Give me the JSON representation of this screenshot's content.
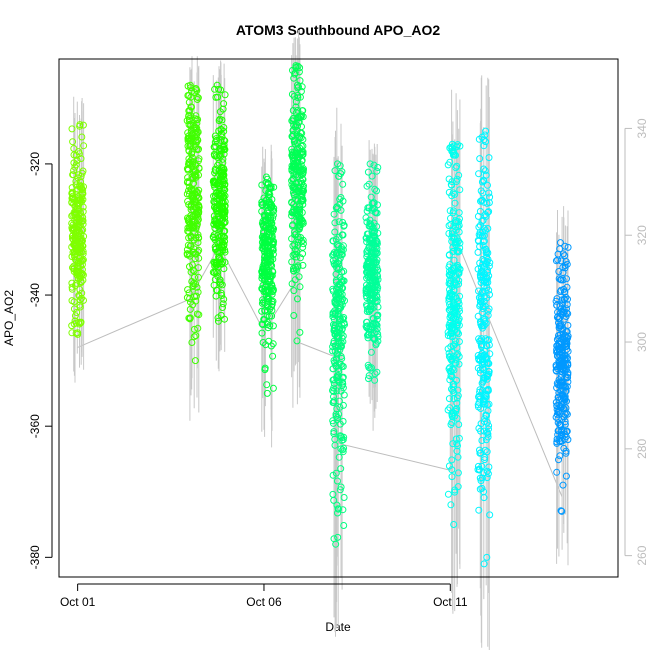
{
  "chart_data": {
    "type": "scatter",
    "title": "ATOM3 Southbound APO_AO2",
    "xlabel": "Date",
    "ylabel": "APO_AO2",
    "x_ticks": [
      "Oct 01",
      "Oct 06",
      "Oct 11"
    ],
    "x_tick_values": [
      1,
      6,
      11
    ],
    "xlim": [
      0.5,
      15.5
    ],
    "ylim": [
      -383,
      -304
    ],
    "y_ticks": [
      -380,
      -360,
      -340,
      -320
    ],
    "y2lim": [
      256,
      353
    ],
    "y2_ticks": [
      260,
      280,
      300,
      320,
      340
    ],
    "y2_color": "#bdbdbd",
    "grid": false,
    "legend": "none",
    "clusters": [
      {
        "x": 1.0,
        "y_min": -346,
        "y_max": -314,
        "y_center": -331,
        "color": "#7fff00"
      },
      {
        "x": 4.1,
        "y_min": -350,
        "y_max": -308,
        "y_center": -325,
        "color": "#40ff00"
      },
      {
        "x": 4.8,
        "y_min": -344,
        "y_max": -308,
        "y_center": -327,
        "color": "#20ff00"
      },
      {
        "x": 6.1,
        "y_min": -355,
        "y_max": -322,
        "y_center": -335,
        "color": "#00ff40"
      },
      {
        "x": 6.9,
        "y_min": -347,
        "y_max": -305,
        "y_center": -322,
        "color": "#00ff55"
      },
      {
        "x": 8.0,
        "y_min": -378,
        "y_max": -320,
        "y_center": -345,
        "color": "#00ff80"
      },
      {
        "x": 8.9,
        "y_min": -353,
        "y_max": -320,
        "y_center": -337,
        "color": "#00ff99"
      },
      {
        "x": 11.1,
        "y_min": -375,
        "y_max": -317,
        "y_center": -342,
        "color": "#00ffee"
      },
      {
        "x": 11.9,
        "y_min": -381,
        "y_max": -315,
        "y_center": -345,
        "color": "#00f5ff"
      },
      {
        "x": 14.0,
        "y_min": -373,
        "y_max": -332,
        "y_center": -350,
        "color": "#0099ff"
      }
    ],
    "line_series": {
      "color": "#bdbdbd",
      "x": [
        1.0,
        4.0,
        4.8,
        6.0,
        6.9,
        6.9,
        8.0,
        8.0,
        11.0,
        11.0,
        14.0
      ],
      "y2": [
        299,
        308,
        318,
        302,
        312,
        300,
        297,
        281,
        276,
        322,
        271
      ]
    }
  }
}
